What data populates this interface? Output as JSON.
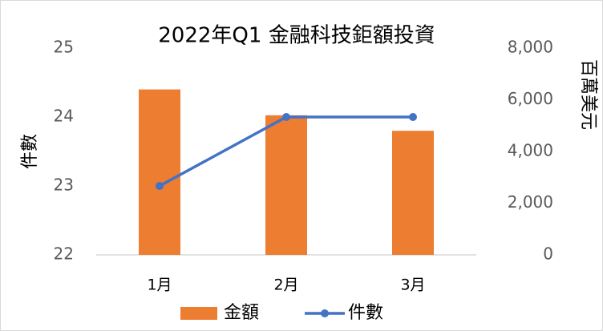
{
  "chart_data": {
    "type": "bar-line",
    "title": "2022年Q1 金融科技鉅額投資",
    "categories": [
      "1月",
      "2月",
      "3月"
    ],
    "series": [
      {
        "name": "金額",
        "type": "bar",
        "color": "#ed7d31",
        "axis": "y2",
        "values": [
          6400,
          5400,
          4800
        ]
      },
      {
        "name": "件數",
        "type": "line",
        "color": "#4472c4",
        "axis": "y",
        "values": [
          23,
          24,
          24
        ]
      }
    ],
    "ylabel": "件數",
    "y2label": "百萬美元",
    "ylim": [
      22,
      25
    ],
    "yticks": [
      22,
      23,
      24,
      25
    ],
    "y2lim": [
      0,
      8000
    ],
    "y2ticks": [
      0,
      {
        "value": 2000,
        "label": "2,000"
      },
      {
        "value": 4000,
        "label": "4,000"
      },
      {
        "value": 6000,
        "label": "6,000"
      },
      {
        "value": 8000,
        "label": "8,000"
      }
    ],
    "legend": "bottom"
  }
}
